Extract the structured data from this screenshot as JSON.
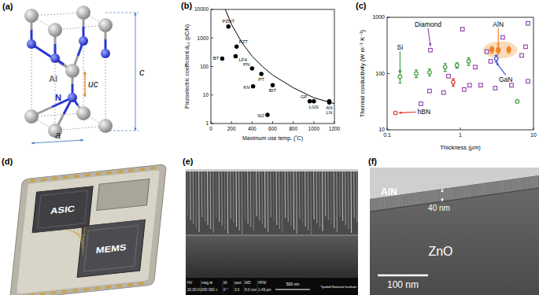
{
  "panel_labels": [
    "(a)",
    "(b)",
    "(c)",
    "(d)",
    "(e)",
    "(f)"
  ],
  "crystal": {
    "atoms": [
      "Al",
      "N"
    ],
    "lattice": [
      "c",
      "a",
      "uc"
    ]
  },
  "chart_data": [
    {
      "type": "scatter",
      "xlabel": "Maximum use temp. (˚C)",
      "ylabel": "Piezoelectric coefficient d₃₃ (pC/N)",
      "log": "y",
      "xlim": [
        0,
        1200
      ],
      "ylim": [
        1,
        10000
      ],
      "xticks": [
        0,
        200,
        400,
        600,
        800,
        1000,
        1200
      ],
      "yticks": [
        1,
        10,
        100,
        1000,
        10000
      ],
      "series": [
        {
          "type": "scatter",
          "color": "#000000",
          "marker": "circle",
          "x": [
            170,
            250,
            110,
            240,
            400,
            490,
            410,
            600,
            550,
            960,
            1000,
            1150,
            1150
          ],
          "values": [
            2500,
            500,
            190,
            230,
            85,
            55,
            20,
            22,
            2,
            6,
            6,
            5.5,
            6
          ],
          "labels": [
            "PZNT",
            "PZT",
            "BT",
            "LF4",
            "PN",
            "PT",
            "KN",
            "BIT",
            "SO",
            "GP",
            "LGS",
            "AN",
            "LN"
          ]
        },
        {
          "type": "line",
          "color": "#000000",
          "line_style": "solid",
          "x": [
            140,
            200,
            300,
            400,
            500,
            600,
            800,
            1000,
            1200
          ],
          "values": [
            10000,
            3000,
            700,
            230,
            100,
            50,
            18,
            8,
            5
          ]
        }
      ]
    },
    {
      "type": "scatter",
      "xlabel": "Thickness (μm)",
      "ylabel": "Thermal conductivity (W m⁻¹ K⁻¹)",
      "log": true,
      "xlim": [
        0.1,
        10
      ],
      "ylim": [
        10,
        1000
      ],
      "xticks": [
        0.1,
        1,
        10
      ],
      "yticks": [
        10,
        100,
        1000
      ],
      "series": [
        {
          "name": "Si",
          "color": "#3a9a3a",
          "marker": "open_circle",
          "x": [
            0.15,
            0.25,
            0.38,
            0.62,
            0.9,
            1.3,
            6
          ],
          "values": [
            88,
            100,
            105,
            130,
            140,
            165,
            32
          ],
          "errors": [
            20,
            15,
            15,
            20,
            15,
            25,
            null
          ]
        },
        {
          "name": "Diamond",
          "color": "#8e3fa8",
          "marker": "open_square",
          "x": [
            0.39,
            0.29,
            0.38,
            0.59,
            0.69,
            1.07,
            1.13,
            1.34,
            1.6,
            1.9,
            2.3,
            2.6,
            3.0,
            3.8,
            5.0,
            6.9,
            7.8,
            8.4,
            8.4
          ],
          "values": [
            261,
            29,
            49,
            46,
            90,
            614,
            52,
            62,
            130,
            62,
            246,
            165,
            55,
            440,
            62,
            210,
            300,
            780,
            73
          ]
        },
        {
          "name": "hBN",
          "color": "#e0302a",
          "marker": "open_circle",
          "x": [
            0.13,
            0.8
          ],
          "values": [
            20,
            70
          ],
          "errors": [
            null,
            10
          ]
        },
        {
          "name": "GaN",
          "color": "#3050d0",
          "marker": "open_circle",
          "x": [
            3.1
          ],
          "values": [
            185
          ],
          "errors": [
            25
          ]
        },
        {
          "name": "AlN",
          "color": "#f08020",
          "marker": "square",
          "x": [
            2.7,
            3.3,
            4.6
          ],
          "values": [
            265,
            260,
            265
          ],
          "errors": [
            35,
            35,
            35
          ]
        }
      ]
    }
  ],
  "chip": {
    "blocks": [
      "ASIC",
      "MEMS"
    ]
  },
  "sem": {
    "fields": [
      {
        "label": "HV",
        "value": "20.00 kV"
      },
      {
        "label": "mag ⊞",
        "value": "200 000 x"
      },
      {
        "label": "tilt",
        "value": "0 °"
      },
      {
        "label": "spot",
        "value": "3.0"
      },
      {
        "label": "WD",
        "value": "9.0 mm"
      },
      {
        "label": "HFW",
        "value": "1.49 µm"
      }
    ],
    "scale_bar": "500 nm",
    "institute": "Tyndall National Institute"
  },
  "tem": {
    "layers": [
      "AlN",
      "ZnO"
    ],
    "thickness": "40 nm",
    "scale_bar": "100 nm"
  }
}
